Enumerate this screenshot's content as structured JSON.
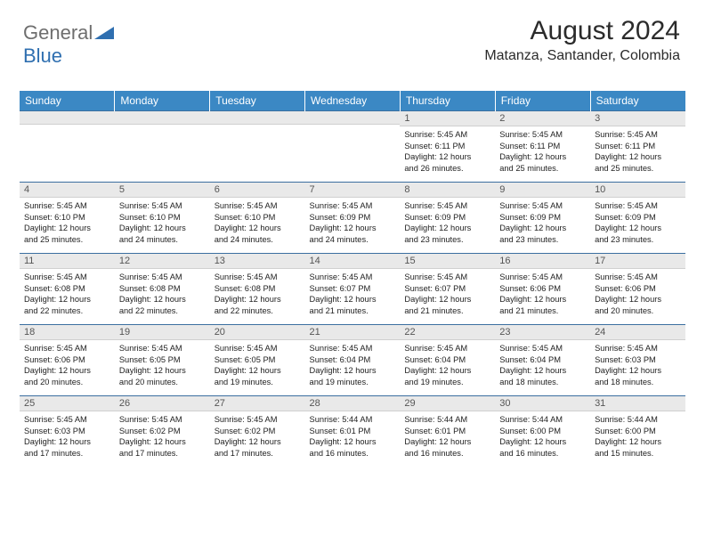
{
  "brand": {
    "part1": "General",
    "part2": "Blue"
  },
  "title": "August 2024",
  "location": "Matanza, Santander, Colombia",
  "colors": {
    "header_bg": "#3b88c4",
    "row_border": "#3b6fa0",
    "daynum_bg": "#e9e9e9",
    "brand_gray": "#6e6e6e",
    "brand_blue": "#2f6fb0"
  },
  "weekdays": [
    "Sunday",
    "Monday",
    "Tuesday",
    "Wednesday",
    "Thursday",
    "Friday",
    "Saturday"
  ],
  "weeks": [
    [
      {
        "day": "",
        "lines": []
      },
      {
        "day": "",
        "lines": []
      },
      {
        "day": "",
        "lines": []
      },
      {
        "day": "",
        "lines": []
      },
      {
        "day": "1",
        "lines": [
          "Sunrise: 5:45 AM",
          "Sunset: 6:11 PM",
          "Daylight: 12 hours",
          "and 26 minutes."
        ]
      },
      {
        "day": "2",
        "lines": [
          "Sunrise: 5:45 AM",
          "Sunset: 6:11 PM",
          "Daylight: 12 hours",
          "and 25 minutes."
        ]
      },
      {
        "day": "3",
        "lines": [
          "Sunrise: 5:45 AM",
          "Sunset: 6:11 PM",
          "Daylight: 12 hours",
          "and 25 minutes."
        ]
      }
    ],
    [
      {
        "day": "4",
        "lines": [
          "Sunrise: 5:45 AM",
          "Sunset: 6:10 PM",
          "Daylight: 12 hours",
          "and 25 minutes."
        ]
      },
      {
        "day": "5",
        "lines": [
          "Sunrise: 5:45 AM",
          "Sunset: 6:10 PM",
          "Daylight: 12 hours",
          "and 24 minutes."
        ]
      },
      {
        "day": "6",
        "lines": [
          "Sunrise: 5:45 AM",
          "Sunset: 6:10 PM",
          "Daylight: 12 hours",
          "and 24 minutes."
        ]
      },
      {
        "day": "7",
        "lines": [
          "Sunrise: 5:45 AM",
          "Sunset: 6:09 PM",
          "Daylight: 12 hours",
          "and 24 minutes."
        ]
      },
      {
        "day": "8",
        "lines": [
          "Sunrise: 5:45 AM",
          "Sunset: 6:09 PM",
          "Daylight: 12 hours",
          "and 23 minutes."
        ]
      },
      {
        "day": "9",
        "lines": [
          "Sunrise: 5:45 AM",
          "Sunset: 6:09 PM",
          "Daylight: 12 hours",
          "and 23 minutes."
        ]
      },
      {
        "day": "10",
        "lines": [
          "Sunrise: 5:45 AM",
          "Sunset: 6:09 PM",
          "Daylight: 12 hours",
          "and 23 minutes."
        ]
      }
    ],
    [
      {
        "day": "11",
        "lines": [
          "Sunrise: 5:45 AM",
          "Sunset: 6:08 PM",
          "Daylight: 12 hours",
          "and 22 minutes."
        ]
      },
      {
        "day": "12",
        "lines": [
          "Sunrise: 5:45 AM",
          "Sunset: 6:08 PM",
          "Daylight: 12 hours",
          "and 22 minutes."
        ]
      },
      {
        "day": "13",
        "lines": [
          "Sunrise: 5:45 AM",
          "Sunset: 6:08 PM",
          "Daylight: 12 hours",
          "and 22 minutes."
        ]
      },
      {
        "day": "14",
        "lines": [
          "Sunrise: 5:45 AM",
          "Sunset: 6:07 PM",
          "Daylight: 12 hours",
          "and 21 minutes."
        ]
      },
      {
        "day": "15",
        "lines": [
          "Sunrise: 5:45 AM",
          "Sunset: 6:07 PM",
          "Daylight: 12 hours",
          "and 21 minutes."
        ]
      },
      {
        "day": "16",
        "lines": [
          "Sunrise: 5:45 AM",
          "Sunset: 6:06 PM",
          "Daylight: 12 hours",
          "and 21 minutes."
        ]
      },
      {
        "day": "17",
        "lines": [
          "Sunrise: 5:45 AM",
          "Sunset: 6:06 PM",
          "Daylight: 12 hours",
          "and 20 minutes."
        ]
      }
    ],
    [
      {
        "day": "18",
        "lines": [
          "Sunrise: 5:45 AM",
          "Sunset: 6:06 PM",
          "Daylight: 12 hours",
          "and 20 minutes."
        ]
      },
      {
        "day": "19",
        "lines": [
          "Sunrise: 5:45 AM",
          "Sunset: 6:05 PM",
          "Daylight: 12 hours",
          "and 20 minutes."
        ]
      },
      {
        "day": "20",
        "lines": [
          "Sunrise: 5:45 AM",
          "Sunset: 6:05 PM",
          "Daylight: 12 hours",
          "and 19 minutes."
        ]
      },
      {
        "day": "21",
        "lines": [
          "Sunrise: 5:45 AM",
          "Sunset: 6:04 PM",
          "Daylight: 12 hours",
          "and 19 minutes."
        ]
      },
      {
        "day": "22",
        "lines": [
          "Sunrise: 5:45 AM",
          "Sunset: 6:04 PM",
          "Daylight: 12 hours",
          "and 19 minutes."
        ]
      },
      {
        "day": "23",
        "lines": [
          "Sunrise: 5:45 AM",
          "Sunset: 6:04 PM",
          "Daylight: 12 hours",
          "and 18 minutes."
        ]
      },
      {
        "day": "24",
        "lines": [
          "Sunrise: 5:45 AM",
          "Sunset: 6:03 PM",
          "Daylight: 12 hours",
          "and 18 minutes."
        ]
      }
    ],
    [
      {
        "day": "25",
        "lines": [
          "Sunrise: 5:45 AM",
          "Sunset: 6:03 PM",
          "Daylight: 12 hours",
          "and 17 minutes."
        ]
      },
      {
        "day": "26",
        "lines": [
          "Sunrise: 5:45 AM",
          "Sunset: 6:02 PM",
          "Daylight: 12 hours",
          "and 17 minutes."
        ]
      },
      {
        "day": "27",
        "lines": [
          "Sunrise: 5:45 AM",
          "Sunset: 6:02 PM",
          "Daylight: 12 hours",
          "and 17 minutes."
        ]
      },
      {
        "day": "28",
        "lines": [
          "Sunrise: 5:44 AM",
          "Sunset: 6:01 PM",
          "Daylight: 12 hours",
          "and 16 minutes."
        ]
      },
      {
        "day": "29",
        "lines": [
          "Sunrise: 5:44 AM",
          "Sunset: 6:01 PM",
          "Daylight: 12 hours",
          "and 16 minutes."
        ]
      },
      {
        "day": "30",
        "lines": [
          "Sunrise: 5:44 AM",
          "Sunset: 6:00 PM",
          "Daylight: 12 hours",
          "and 16 minutes."
        ]
      },
      {
        "day": "31",
        "lines": [
          "Sunrise: 5:44 AM",
          "Sunset: 6:00 PM",
          "Daylight: 12 hours",
          "and 15 minutes."
        ]
      }
    ]
  ]
}
